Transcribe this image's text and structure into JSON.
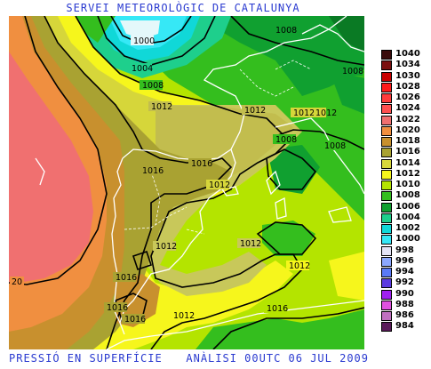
{
  "header": {
    "title": "SERVEI METEOROLÒGIC DE CATALUNYA"
  },
  "footer": {
    "left": "PRESSIÓ EN SUPERFÍCIE",
    "right": "ANÀLISI 00UTC 06 JUL 2009"
  },
  "legend": [
    {
      "label": "1040",
      "color": "#3a0c0c"
    },
    {
      "label": "1034",
      "color": "#7a1010"
    },
    {
      "label": "1030",
      "color": "#c80000"
    },
    {
      "label": "1028",
      "color": "#ff1a1a"
    },
    {
      "label": "1026",
      "color": "#ff3b3b"
    },
    {
      "label": "1024",
      "color": "#ff5050"
    },
    {
      "label": "1022",
      "color": "#f07070"
    },
    {
      "label": "1020",
      "color": "#f08f40"
    },
    {
      "label": "1018",
      "color": "#c8902e"
    },
    {
      "label": "1016",
      "color": "#a9a232"
    },
    {
      "label": "1014",
      "color": "#d6d63a"
    },
    {
      "label": "1012",
      "color": "#f6f61c"
    },
    {
      "label": "1010",
      "color": "#b4e400"
    },
    {
      "label": "1008",
      "color": "#34be1e"
    },
    {
      "label": "1006",
      "color": "#10a030"
    },
    {
      "label": "1004",
      "color": "#1ecf8c"
    },
    {
      "label": "1002",
      "color": "#10d8d8"
    },
    {
      "label": "1000",
      "color": "#36e8f6"
    },
    {
      "label": "998",
      "color": "#e4e4f6"
    },
    {
      "label": "996",
      "color": "#8ca8ff"
    },
    {
      "label": "994",
      "color": "#5a7af6"
    },
    {
      "label": "992",
      "color": "#5a3ae0"
    },
    {
      "label": "990",
      "color": "#a020f0"
    },
    {
      "label": "988",
      "color": "#e050e0"
    },
    {
      "label": "986",
      "color": "#c070c0"
    },
    {
      "label": "984",
      "color": "#5a1a5a"
    }
  ],
  "isobar_labels": [
    "1000",
    "1004",
    "1008",
    "1008",
    "1008",
    "1008",
    "1008",
    "1012",
    "1012",
    "1012",
    "1012",
    "1012",
    "1012",
    "1012",
    "1012",
    "1012",
    "1016",
    "1016",
    "1016",
    "1016",
    "1016",
    "1016",
    "20"
  ]
}
